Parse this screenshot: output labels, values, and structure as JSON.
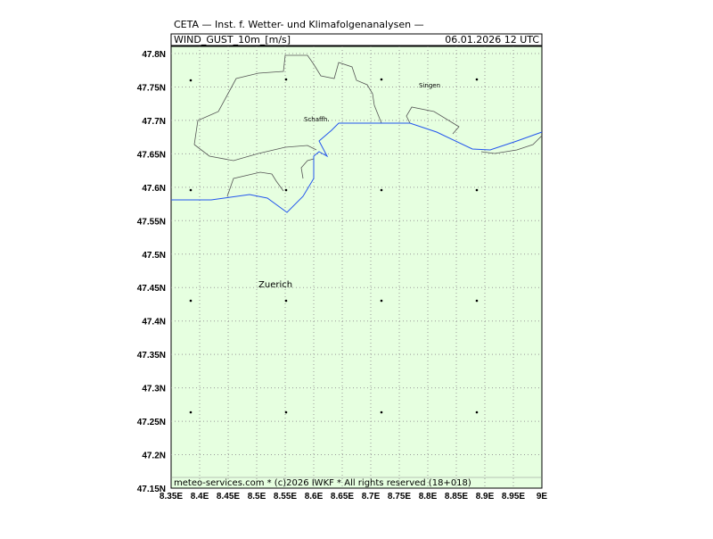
{
  "header": {
    "title": "CETA — Inst. f. Wetter- und Klimafolgenanalysen —",
    "field": "WIND_GUST_10m_[m/s]",
    "time": "06.01.2026 12 UTC"
  },
  "axes": {
    "x_labels": [
      "8.35E",
      "8.4E",
      "8.45E",
      "8.5E",
      "8.55E",
      "8.6E",
      "8.65E",
      "8.7E",
      "8.75E",
      "8.8E",
      "8.85E",
      "8.9E",
      "8.95E",
      "9E"
    ],
    "y_labels": [
      "47.15N",
      "47.2N",
      "47.25N",
      "47.3N",
      "47.35N",
      "47.4N",
      "47.45N",
      "47.5N",
      "47.55N",
      "47.6N",
      "47.65N",
      "47.7N",
      "47.75N",
      "47.8N"
    ]
  },
  "places": [
    "Singen",
    "Schaffh.",
    "Zuerich"
  ],
  "footer": "meteo-services.com * (c)2026 IWKF * All rights reserved (18+018)"
}
